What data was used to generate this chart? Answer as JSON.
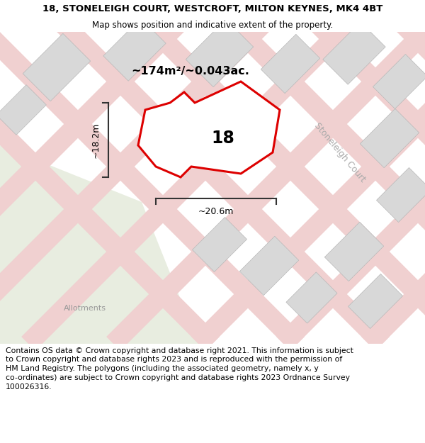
{
  "title": "18, STONELEIGH COURT, WESTCROFT, MILTON KEYNES, MK4 4BT",
  "subtitle": "Map shows position and indicative extent of the property.",
  "area_label": "~174m²/~0.043ac.",
  "width_label": "~20.6m",
  "height_label": "~18.2m",
  "property_number": "18",
  "road_label": "Stoneleigh Court",
  "allotments_label": "Allotments",
  "footer_line1": "Contains OS data © Crown copyright and database right 2021. This information is subject",
  "footer_line2": "to Crown copyright and database rights 2023 and is reproduced with the permission of",
  "footer_line3": "HM Land Registry. The polygons (including the associated geometry, namely x, y",
  "footer_line4": "co-ordinates) are subject to Crown copyright and database rights 2023 Ordnance Survey",
  "footer_line5": "100026316.",
  "map_bg": "#f2f2ee",
  "road_fill": "#f0d0d0",
  "building_fill": "#d8d8d8",
  "building_edge": "#b8b8b8",
  "property_fill": "#ffffff",
  "property_edge": "#dd0000",
  "green_fill": "#e8ede0",
  "dim_line_color": "#333333",
  "road_label_color": "#aaaaaa",
  "allot_label_color": "#999999"
}
